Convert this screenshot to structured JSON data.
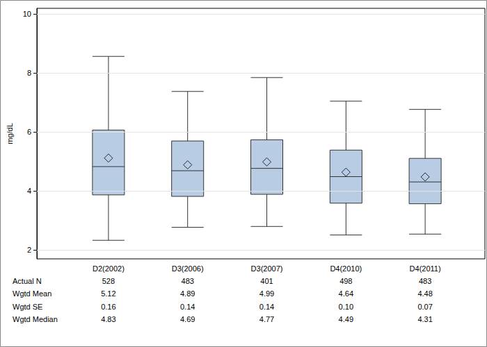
{
  "chart_data": {
    "type": "boxplot",
    "y_label": "mg/dL",
    "categories": [
      "D2(2002)",
      "D3(2006)",
      "D3(2007)",
      "D4(2010)",
      "D4(2011)"
    ],
    "boxes": [
      [
        2.33,
        3.87,
        4.83,
        6.07,
        8.57
      ],
      [
        2.77,
        3.82,
        4.69,
        5.7,
        7.38
      ],
      [
        2.8,
        3.89,
        4.77,
        5.74,
        7.85
      ],
      [
        2.51,
        3.59,
        4.49,
        5.39,
        7.05
      ],
      [
        2.54,
        3.57,
        4.31,
        5.11,
        6.77
      ]
    ],
    "means": [
      5.12,
      4.89,
      4.99,
      4.64,
      4.48
    ],
    "marker": "diamond",
    "color": "#b8cce4",
    "ylim": [
      1.7,
      10.2
    ],
    "yticks": [
      2,
      4,
      6,
      8,
      10
    ],
    "grid": true,
    "table": [
      {
        "label": "Actual N",
        "values": [
          528,
          483,
          401,
          498,
          483
        ]
      },
      {
        "label": "Wgtd Mean",
        "values": [
          5.12,
          4.89,
          4.99,
          4.64,
          4.48
        ]
      },
      {
        "label": "Wgtd SE",
        "values": [
          0.16,
          0.14,
          0.14,
          0.1,
          0.07
        ],
        "value_labels": [
          "0.16",
          "0.14",
          "0.14",
          "0.10",
          "0.07"
        ]
      },
      {
        "label": "Wgtd Median",
        "values": [
          4.83,
          4.69,
          4.77,
          4.49,
          4.31
        ]
      }
    ]
  }
}
